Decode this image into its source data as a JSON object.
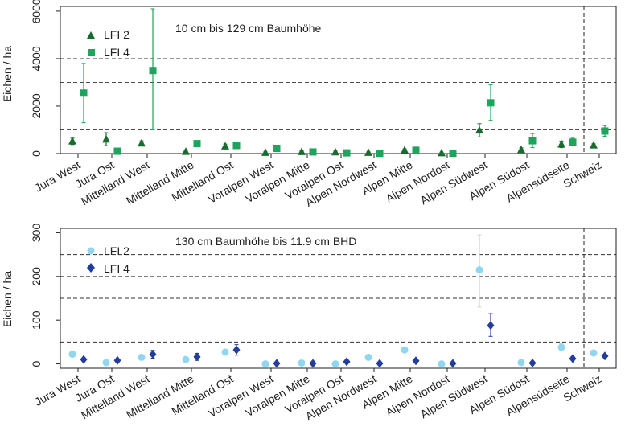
{
  "chart_data": [
    {
      "type": "scatter",
      "title": "10 cm bis 129 cm Baumhöhe",
      "ylabel": "Eichen / ha",
      "ylim": [
        0,
        6200
      ],
      "yticks": [
        0,
        2000,
        4000,
        6000
      ],
      "dashed_gridlines": [
        1000,
        3000,
        4000,
        5000
      ],
      "categories": [
        "Jura West",
        "Jura Ost",
        "Mittelland West",
        "Mittelland Mitte",
        "Mittelland Ost",
        "Voralpen West",
        "Voralpen Mitte",
        "Voralpen Ost",
        "Alpen Nordwest",
        "Alpen Mitte",
        "Alpen Nordost",
        "Alpen Südwest",
        "Alpen Südost",
        "Alpensüdseite",
        "Schweiz"
      ],
      "series": [
        {
          "name": "LFI 2",
          "color": "#1a6b2e",
          "marker": "triangle",
          "values": [
            520,
            600,
            430,
            80,
            310,
            40,
            70,
            60,
            40,
            140,
            20,
            980,
            160,
            390,
            350
          ],
          "low": [
            380,
            330,
            330,
            30,
            230,
            10,
            30,
            20,
            10,
            90,
            0,
            700,
            90,
            250,
            300
          ],
          "high": [
            650,
            880,
            540,
            140,
            400,
            80,
            120,
            110,
            70,
            200,
            60,
            1260,
            240,
            530,
            410
          ]
        },
        {
          "name": "LFI 4",
          "color": "#1fa35d",
          "marker": "square",
          "values": [
            2550,
            100,
            3500,
            420,
            340,
            220,
            70,
            30,
            10,
            140,
            10,
            2140,
            540,
            480,
            950
          ],
          "low": [
            1300,
            40,
            1000,
            320,
            220,
            130,
            30,
            10,
            0,
            80,
            0,
            1400,
            250,
            320,
            730
          ],
          "high": [
            3800,
            160,
            6100,
            520,
            460,
            320,
            120,
            60,
            30,
            200,
            30,
            2900,
            840,
            650,
            1180
          ]
        }
      ]
    },
    {
      "type": "scatter",
      "title": "130 cm Baumhöhe bis 11.9 cm BHD",
      "ylabel": "Eichen / ha",
      "ylim": [
        -10,
        310
      ],
      "yticks": [
        0,
        100,
        200,
        300
      ],
      "dashed_gridlines": [
        50,
        150,
        200,
        250
      ],
      "categories": [
        "Jura West",
        "Jura Ost",
        "Mittelland West",
        "Mittelland Mitte",
        "Mittelland Ost",
        "Voralpen West",
        "Voralpen Mitte",
        "Voralpen Ost",
        "Alpen Nordwest",
        "Alpen Mitte",
        "Alpen Nordost",
        "Alpen Südwest",
        "Alpen Südost",
        "Alpensüdseite",
        "Schweiz"
      ],
      "series": [
        {
          "name": "LFI 2",
          "color": "#8fd6f0",
          "marker": "circle",
          "values": [
            22,
            3,
            15,
            10,
            27,
            0,
            2,
            0,
            15,
            32,
            0,
            215,
            3,
            38,
            25
          ],
          "low": [
            17,
            1,
            11,
            6,
            21,
            0,
            0,
            0,
            10,
            26,
            0,
            130,
            1,
            30,
            21
          ],
          "high": [
            27,
            5,
            19,
            14,
            33,
            2,
            4,
            2,
            20,
            38,
            1,
            295,
            5,
            46,
            29
          ],
          "error_color": "#d0d0d0"
        },
        {
          "name": "LFI 4",
          "color": "#233d9c",
          "marker": "diamond",
          "values": [
            10,
            8,
            22,
            16,
            32,
            1,
            1,
            5,
            1,
            7,
            1,
            88,
            2,
            12,
            18
          ],
          "low": [
            6,
            5,
            13,
            8,
            20,
            0,
            0,
            2,
            0,
            3,
            0,
            63,
            0,
            8,
            15
          ],
          "high": [
            14,
            11,
            31,
            24,
            44,
            3,
            3,
            8,
            3,
            11,
            3,
            115,
            4,
            16,
            21
          ]
        }
      ]
    }
  ]
}
